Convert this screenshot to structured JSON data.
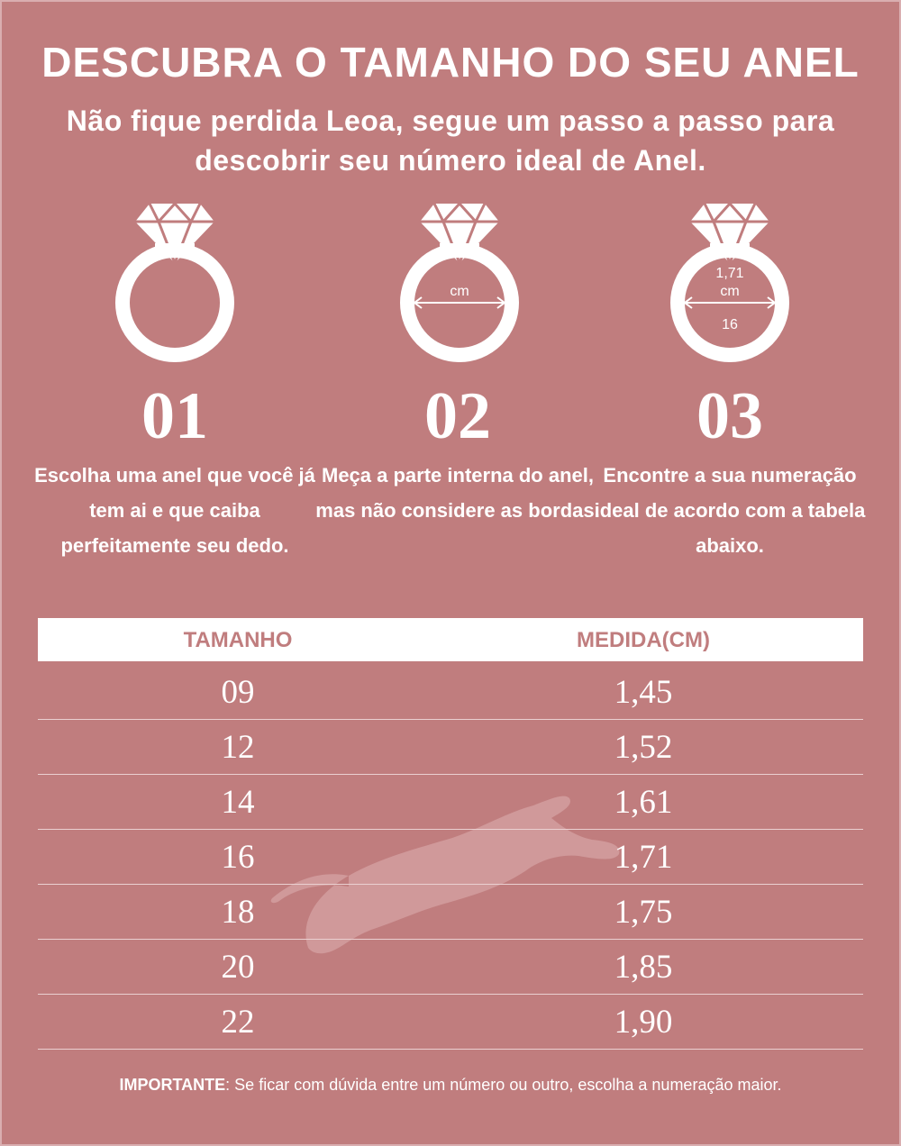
{
  "title": "DESCUBRA O TAMANHO DO SEU ANEL",
  "subtitle": "Não fique perdida Leoa, segue um passo a passo para descobrir seu número ideal de Anel.",
  "steps": [
    {
      "number": "01",
      "icon": "ring-icon",
      "text": "Escolha uma anel que você já tem ai e que caiba perfeitamente seu dedo."
    },
    {
      "number": "02",
      "icon": "ring-measure-icon",
      "icon_label": "cm",
      "text": "Meça a parte interna do anel, mas não considere as bordas."
    },
    {
      "number": "03",
      "icon": "ring-size-icon",
      "icon_label_top": "1,71",
      "icon_label_unit": "cm",
      "icon_label_bottom": "16",
      "text": "Encontre a sua numeração ideal de acordo com a tabela abaixo."
    }
  ],
  "table": {
    "headers": [
      "TAMANHO",
      "MEDIDA(CM)"
    ],
    "rows": [
      [
        "09",
        "1,45"
      ],
      [
        "12",
        "1,52"
      ],
      [
        "14",
        "1,61"
      ],
      [
        "16",
        "1,71"
      ],
      [
        "18",
        "1,75"
      ],
      [
        "20",
        "1,85"
      ],
      [
        "22",
        "1,90"
      ]
    ]
  },
  "note": {
    "label": "IMPORTANTE",
    "text": ": Se ficar com dúvida entre um número ou outro, escolha a numeração maior."
  },
  "colors": {
    "background": "#c07d7e",
    "foreground": "#ffffff",
    "watermark": "#d29e9f"
  },
  "watermark_icon": "lion-silhouette-icon"
}
